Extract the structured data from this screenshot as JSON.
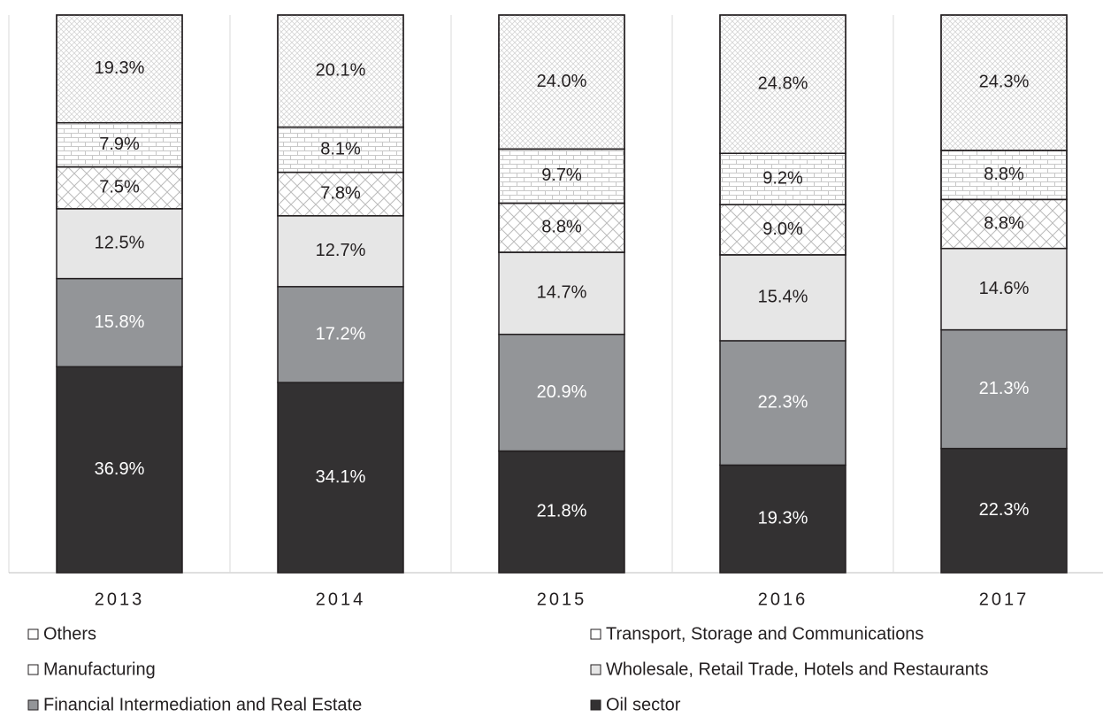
{
  "chart_data": {
    "type": "stacked_bar",
    "categories": [
      "2013",
      "2014",
      "2015",
      "2016",
      "2017"
    ],
    "series": [
      {
        "name": "Oil sector",
        "color": "#333132",
        "values": [
          36.9,
          34.1,
          21.8,
          19.3,
          22.3
        ],
        "value_labels": [
          "36.9%",
          "34.1%",
          "21.8%",
          "19.3%",
          "22.3%"
        ]
      },
      {
        "name": "Financial Intermediation and Real Estate",
        "color": "#939598",
        "values": [
          15.8,
          17.2,
          20.9,
          22.3,
          21.3
        ],
        "value_labels": [
          "15.8%",
          "17.2%",
          "20.9%",
          "22.3%",
          "21.3%"
        ]
      },
      {
        "name": "Wholesale, Retail Trade, Hotels and Restaurants",
        "color": "#e6e6e6",
        "values": [
          12.5,
          12.7,
          14.7,
          15.4,
          14.6
        ],
        "value_labels": [
          "12.5%",
          "12.7%",
          "14.7%",
          "15.4%",
          "14.6%"
        ]
      },
      {
        "name": "Manufacturing",
        "color": "#ffffff",
        "values": [
          7.5,
          7.8,
          8.8,
          9.0,
          8.8
        ],
        "value_labels": [
          "7.5%",
          "7.8%",
          "8.8%",
          "9.0%",
          "8.8%"
        ]
      },
      {
        "name": "Transport, Storage and Communications",
        "color": "#ffffff",
        "values": [
          7.9,
          8.1,
          9.7,
          9.2,
          8.8
        ],
        "value_labels": [
          "7.9%",
          "8.1%",
          "9.7%",
          "9.2%",
          "8.8%"
        ]
      },
      {
        "name": "Others",
        "color": "#ffffff",
        "values": [
          19.3,
          20.1,
          24.0,
          24.8,
          24.3
        ],
        "value_labels": [
          "19.3%",
          "20.1%",
          "24.0%",
          "24.8%",
          "24.3%"
        ]
      }
    ],
    "legend": "bottom"
  }
}
